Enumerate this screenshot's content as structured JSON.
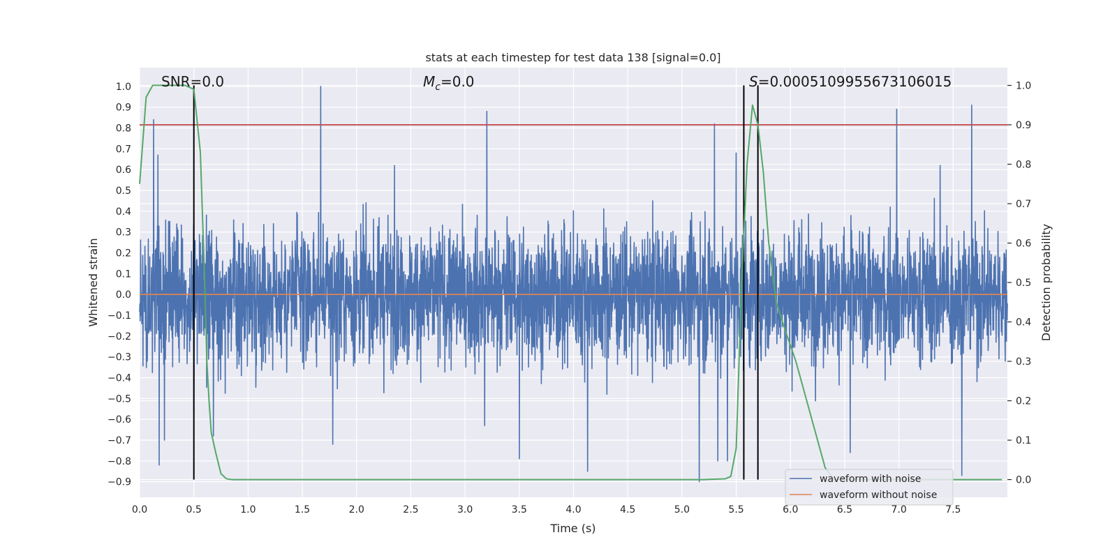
{
  "chart_data": {
    "type": "line",
    "title": "stats at each timestep for test data 138 [signal=0.0]",
    "xlabel": "Time (s)",
    "ylabel": "Whitened strain",
    "y2label": "Detection probability",
    "xlim": [
      0.0,
      8.0
    ],
    "ylim": [
      -0.975,
      1.09
    ],
    "y2lim": [
      -0.045,
      1.045
    ],
    "xticks": [
      "0.0",
      "0.5",
      "1.0",
      "1.5",
      "2.0",
      "2.5",
      "3.0",
      "3.5",
      "4.0",
      "4.5",
      "5.0",
      "5.5",
      "6.0",
      "6.5",
      "7.0",
      "7.5"
    ],
    "xtick_values": [
      0,
      0.5,
      1,
      1.5,
      2,
      2.5,
      3,
      3.5,
      4,
      4.5,
      5,
      5.5,
      6,
      6.5,
      7,
      7.5
    ],
    "yticks": [
      "1.0",
      "0.9",
      "0.8",
      "0.7",
      "0.6",
      "0.5",
      "0.4",
      "0.3",
      "0.2",
      "0.1",
      "0.0",
      "−0.1",
      "−0.2",
      "−0.3",
      "−0.4",
      "−0.5",
      "−0.6",
      "−0.7",
      "−0.8",
      "−0.9"
    ],
    "ytick_values": [
      1.0,
      0.9,
      0.8,
      0.7,
      0.6,
      0.5,
      0.4,
      0.3,
      0.2,
      0.1,
      0.0,
      -0.1,
      -0.2,
      -0.3,
      -0.4,
      -0.5,
      -0.6,
      -0.7,
      -0.8,
      -0.9
    ],
    "y2ticks": [
      "1.0",
      "0.9",
      "0.8",
      "0.7",
      "0.6",
      "0.5",
      "0.4",
      "0.3",
      "0.2",
      "0.1",
      "0.0"
    ],
    "y2tick_values": [
      1.0,
      0.9,
      0.8,
      0.7,
      0.6,
      0.5,
      0.4,
      0.3,
      0.2,
      0.1,
      0.0
    ],
    "annotations": {
      "snr_prefix": "SNR=",
      "snr_value": "0.0",
      "mc_symbol": "M",
      "mc_sub": "c",
      "mc_value": "=0.0",
      "s_symbol": "S",
      "s_value": "=0.0005109955673106015"
    },
    "threshold": {
      "axis": "y2",
      "value": 0.9,
      "color": "#c44e52"
    },
    "vlines": [
      0.5,
      5.57,
      5.7
    ],
    "series": [
      {
        "name": "waveform with noise",
        "color": "#4c72b0",
        "axis": "y",
        "sampling": "dense noise, approx. 16384 samples over 8 s",
        "envelope": {
          "typical_max": 0.4,
          "typical_min": -0.45
        },
        "spikes": [
          [
            0.13,
            0.84
          ],
          [
            0.17,
            0.67
          ],
          [
            0.18,
            -0.82
          ],
          [
            0.23,
            -0.7
          ],
          [
            0.5,
            -0.57
          ],
          [
            0.68,
            -0.68
          ],
          [
            1.67,
            1.0
          ],
          [
            1.78,
            -0.72
          ],
          [
            2.35,
            0.62
          ],
          [
            3.2,
            0.88
          ],
          [
            3.18,
            -0.63
          ],
          [
            3.5,
            -0.79
          ],
          [
            4.13,
            -0.85
          ],
          [
            5.16,
            -0.9
          ],
          [
            5.3,
            0.82
          ],
          [
            5.33,
            -0.8
          ],
          [
            5.42,
            -0.8
          ],
          [
            5.5,
            0.68
          ],
          [
            6.55,
            -0.76
          ],
          [
            6.98,
            0.89
          ],
          [
            7.38,
            0.62
          ],
          [
            7.58,
            -0.87
          ],
          [
            7.67,
            0.91
          ]
        ]
      },
      {
        "name": "waveform without noise",
        "color": "#dd8452",
        "axis": "y",
        "x": [
          0.0,
          8.0
        ],
        "y": [
          0.0,
          0.0
        ]
      },
      {
        "name": "detection probability",
        "color": "#55a868",
        "axis": "y2",
        "x": [
          0.0,
          0.06,
          0.12,
          0.25,
          0.42,
          0.5,
          0.56,
          0.6,
          0.62,
          0.64,
          0.66,
          0.7,
          0.75,
          0.8,
          0.85,
          1.0,
          2.0,
          3.0,
          4.0,
          5.0,
          5.2,
          5.4,
          5.45,
          5.5,
          5.55,
          5.6,
          5.65,
          5.7,
          5.75,
          5.8,
          5.87,
          5.95,
          6.05,
          6.15,
          6.25,
          6.32,
          6.4,
          7.0,
          7.5,
          7.95
        ],
        "y": [
          0.75,
          0.97,
          1.0,
          1.0,
          1.0,
          0.99,
          0.83,
          0.5,
          0.3,
          0.2,
          0.12,
          0.07,
          0.015,
          0.002,
          0.0,
          0.0,
          0.0,
          0.0,
          0.0,
          0.0,
          0.0,
          0.002,
          0.008,
          0.08,
          0.5,
          0.8,
          0.95,
          0.9,
          0.78,
          0.6,
          0.45,
          0.38,
          0.3,
          0.2,
          0.1,
          0.03,
          0.0,
          0.0,
          0.0,
          0.0
        ]
      }
    ],
    "legend": {
      "position": "lower-right",
      "entries": [
        {
          "label": "waveform with noise",
          "color": "#4c72b0"
        },
        {
          "label": "waveform without noise",
          "color": "#dd8452"
        }
      ]
    },
    "style": {
      "plot_bg": "#eaeaf2",
      "grid_color": "#ffffff",
      "text_color": "#262626",
      "vline_color": "#000000"
    }
  }
}
